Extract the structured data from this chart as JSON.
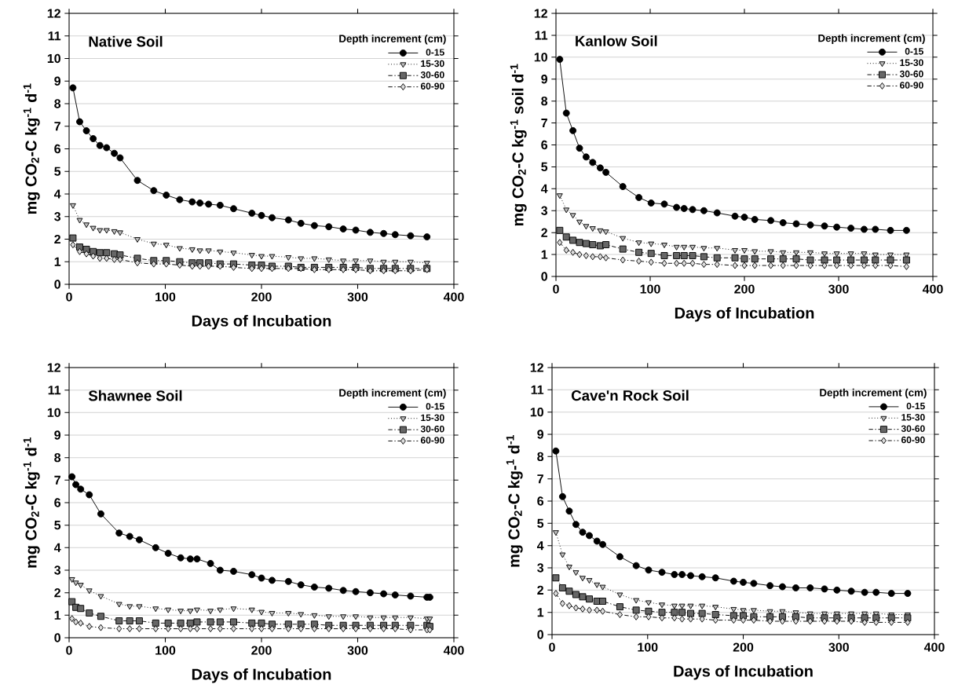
{
  "chart_data": [
    {
      "type": "line",
      "title": "Native Soil",
      "xlabel": "Days of Incubation",
      "ylabel": "mg CO$_{2}$-C kg$^{-1}$ d$^{-1}$",
      "legend_title": "Depth increment (cm)",
      "grid": "y",
      "legend": "top right",
      "xlim": [
        0,
        400
      ],
      "ylim": [
        0,
        12
      ],
      "xticks": [
        0,
        100,
        200,
        300,
        400
      ],
      "yticks": [
        0,
        1,
        2,
        3,
        4,
        5,
        6,
        7,
        8,
        9,
        10,
        11,
        12
      ],
      "x": [
        4,
        11,
        18,
        25,
        32,
        39,
        47,
        53,
        71,
        88,
        101,
        115,
        128,
        136,
        145,
        157,
        171,
        190,
        200,
        211,
        228,
        241,
        255,
        270,
        285,
        298,
        313,
        327,
        339,
        355,
        372
      ],
      "series": [
        {
          "name": "0-15",
          "color": "#000000",
          "marker": "circle",
          "line_style": "solid",
          "values": [
            8.7,
            7.2,
            6.8,
            6.45,
            6.15,
            6.05,
            5.8,
            5.6,
            4.6,
            4.15,
            3.95,
            3.75,
            3.65,
            3.6,
            3.55,
            3.5,
            3.35,
            3.15,
            3.05,
            2.95,
            2.85,
            2.7,
            2.6,
            2.55,
            2.45,
            2.4,
            2.3,
            2.25,
            2.2,
            2.15,
            2.1
          ]
        },
        {
          "name": "15-30",
          "color": "#c0c0c0",
          "marker": "triangle",
          "line_style": "dotted",
          "values": [
            3.5,
            2.85,
            2.65,
            2.5,
            2.4,
            2.4,
            2.35,
            2.3,
            2.0,
            1.8,
            1.75,
            1.6,
            1.55,
            1.5,
            1.5,
            1.45,
            1.4,
            1.3,
            1.25,
            1.25,
            1.2,
            1.15,
            1.15,
            1.1,
            1.05,
            1.05,
            1.05,
            1.0,
            1.0,
            1.0,
            0.95
          ]
        },
        {
          "name": "30-60",
          "color": "#666666",
          "marker": "square",
          "line_style": "dashed",
          "values": [
            2.05,
            1.65,
            1.55,
            1.45,
            1.4,
            1.4,
            1.35,
            1.3,
            1.15,
            1.05,
            1.05,
            1.0,
            0.95,
            0.95,
            0.95,
            0.9,
            0.9,
            0.85,
            0.85,
            0.8,
            0.8,
            0.75,
            0.75,
            0.75,
            0.75,
            0.75,
            0.7,
            0.7,
            0.7,
            0.7,
            0.7
          ]
        },
        {
          "name": "60-90",
          "color": "#dddddd",
          "marker": "diamond",
          "line_style": "dashed",
          "values": [
            1.75,
            1.45,
            1.35,
            1.25,
            1.15,
            1.15,
            1.1,
            1.1,
            0.95,
            0.9,
            0.9,
            0.85,
            0.8,
            0.8,
            0.8,
            0.8,
            0.75,
            0.7,
            0.7,
            0.7,
            0.7,
            0.7,
            0.65,
            0.65,
            0.65,
            0.65,
            0.6,
            0.6,
            0.6,
            0.6,
            0.65
          ]
        }
      ]
    },
    {
      "type": "line",
      "title": "Kanlow Soil",
      "xlabel": "Days of Incubation",
      "ylabel": "mg CO$_{2}$-C kg$^{-1}$ soil d$^{-1}$",
      "legend_title": "Depth increment (cm)",
      "grid": "y",
      "legend": "top right",
      "xlim": [
        0,
        400
      ],
      "ylim": [
        0,
        12
      ],
      "xticks": [
        0,
        100,
        200,
        300,
        400
      ],
      "yticks": [
        0,
        1,
        2,
        3,
        4,
        5,
        6,
        7,
        8,
        9,
        10,
        11,
        12
      ],
      "x": [
        4,
        11,
        18,
        25,
        32,
        39,
        47,
        53,
        71,
        88,
        101,
        115,
        128,
        136,
        145,
        157,
        171,
        190,
        200,
        211,
        228,
        241,
        255,
        270,
        285,
        298,
        313,
        327,
        339,
        355,
        372
      ],
      "series": [
        {
          "name": "0-15",
          "color": "#000000",
          "marker": "circle",
          "line_style": "solid",
          "values": [
            9.9,
            7.45,
            6.65,
            5.85,
            5.45,
            5.2,
            4.95,
            4.75,
            4.1,
            3.6,
            3.35,
            3.3,
            3.15,
            3.1,
            3.05,
            3.0,
            2.9,
            2.75,
            2.7,
            2.6,
            2.55,
            2.45,
            2.4,
            2.35,
            2.3,
            2.25,
            2.2,
            2.15,
            2.15,
            2.1,
            2.1
          ]
        },
        {
          "name": "15-30",
          "color": "#c0c0c0",
          "marker": "triangle",
          "line_style": "dotted",
          "values": [
            3.7,
            3.05,
            2.8,
            2.5,
            2.3,
            2.2,
            2.1,
            2.05,
            1.75,
            1.55,
            1.5,
            1.45,
            1.35,
            1.35,
            1.35,
            1.3,
            1.3,
            1.2,
            1.2,
            1.15,
            1.15,
            1.1,
            1.1,
            1.1,
            1.05,
            1.05,
            1.05,
            1.05,
            1.0,
            1.0,
            1.0
          ]
        },
        {
          "name": "30-60",
          "color": "#666666",
          "marker": "square",
          "line_style": "dashed",
          "values": [
            2.1,
            1.8,
            1.65,
            1.55,
            1.5,
            1.45,
            1.4,
            1.45,
            1.25,
            1.1,
            1.05,
            0.95,
            0.95,
            0.95,
            0.95,
            0.9,
            0.85,
            0.85,
            0.8,
            0.8,
            0.8,
            0.8,
            0.8,
            0.75,
            0.75,
            0.75,
            0.75,
            0.75,
            0.75,
            0.75,
            0.75
          ]
        },
        {
          "name": "60-90",
          "color": "#dddddd",
          "marker": "diamond",
          "line_style": "dashed",
          "values": [
            1.55,
            1.2,
            1.1,
            1.0,
            0.95,
            0.9,
            0.9,
            0.85,
            0.75,
            0.7,
            0.65,
            0.6,
            0.6,
            0.6,
            0.6,
            0.55,
            0.55,
            0.5,
            0.5,
            0.5,
            0.5,
            0.5,
            0.5,
            0.5,
            0.5,
            0.5,
            0.5,
            0.5,
            0.5,
            0.5,
            0.45
          ]
        }
      ]
    },
    {
      "type": "line",
      "title": "Shawnee Soil",
      "xlabel": "Days of Incubation",
      "ylabel": "mg CO$_{2}$-C kg$^{-1}$ d$^{-1}$",
      "legend_title": "Depth increment (cm)",
      "grid": "y",
      "legend": "top right",
      "xlim": [
        0,
        400
      ],
      "ylim": [
        0,
        12
      ],
      "xticks": [
        0,
        100,
        200,
        300,
        400
      ],
      "yticks": [
        0,
        1,
        2,
        3,
        4,
        5,
        6,
        7,
        8,
        9,
        10,
        11,
        12
      ],
      "x": [
        3,
        7,
        12,
        21,
        33,
        52,
        63,
        73,
        90,
        103,
        116,
        126,
        133,
        147,
        157,
        171,
        190,
        200,
        211,
        228,
        241,
        255,
        270,
        285,
        298,
        313,
        327,
        339,
        355,
        372,
        375
      ],
      "series": [
        {
          "name": "0-15",
          "color": "#000000",
          "marker": "circle",
          "line_style": "solid",
          "values": [
            7.15,
            6.8,
            6.6,
            6.35,
            5.5,
            4.65,
            4.5,
            4.35,
            4.0,
            3.75,
            3.55,
            3.5,
            3.5,
            3.3,
            3.0,
            2.95,
            2.8,
            2.65,
            2.55,
            2.5,
            2.35,
            2.25,
            2.2,
            2.1,
            2.05,
            2.0,
            1.95,
            1.9,
            1.85,
            1.8,
            1.8
          ]
        },
        {
          "name": "15-30",
          "color": "#c0c0c0",
          "marker": "triangle",
          "line_style": "dotted",
          "values": [
            2.6,
            2.45,
            2.35,
            2.1,
            1.85,
            1.5,
            1.4,
            1.4,
            1.3,
            1.25,
            1.2,
            1.2,
            1.25,
            1.2,
            1.25,
            1.3,
            1.25,
            1.15,
            1.1,
            1.1,
            1.05,
            1.0,
            0.95,
            0.95,
            0.95,
            0.9,
            0.9,
            0.9,
            0.9,
            0.85,
            0.85
          ]
        },
        {
          "name": "30-60",
          "color": "#666666",
          "marker": "square",
          "line_style": "dashed",
          "values": [
            1.6,
            1.35,
            1.3,
            1.1,
            0.95,
            0.75,
            0.75,
            0.75,
            0.65,
            0.65,
            0.65,
            0.65,
            0.7,
            0.7,
            0.7,
            0.7,
            0.65,
            0.65,
            0.6,
            0.6,
            0.6,
            0.6,
            0.55,
            0.55,
            0.55,
            0.55,
            0.55,
            0.55,
            0.55,
            0.55,
            0.5
          ]
        },
        {
          "name": "60-90",
          "color": "#dddddd",
          "marker": "diamond",
          "line_style": "dashed",
          "values": [
            0.85,
            0.7,
            0.65,
            0.5,
            0.45,
            0.4,
            0.4,
            0.4,
            0.4,
            0.4,
            0.4,
            0.4,
            0.4,
            0.4,
            0.4,
            0.4,
            0.4,
            0.4,
            0.4,
            0.4,
            0.4,
            0.4,
            0.4,
            0.4,
            0.4,
            0.4,
            0.4,
            0.4,
            0.35,
            0.35,
            0.35
          ]
        }
      ]
    },
    {
      "type": "line",
      "title": "Cave'n Rock Soil",
      "xlabel": "Days of Incubation",
      "ylabel": "mg CO$_{2}$-C kg-$^{1}$ d$^{-1}$",
      "legend_title": "Depth increment (cm)",
      "grid": "y",
      "legend": "top right",
      "xlim": [
        0,
        400
      ],
      "ylim": [
        0,
        12
      ],
      "xticks": [
        0,
        100,
        200,
        300,
        400
      ],
      "yticks": [
        0,
        1,
        2,
        3,
        4,
        5,
        6,
        7,
        8,
        9,
        10,
        11,
        12
      ],
      "x": [
        4,
        11,
        18,
        25,
        32,
        39,
        47,
        53,
        71,
        88,
        101,
        115,
        128,
        136,
        145,
        157,
        171,
        190,
        200,
        211,
        228,
        241,
        255,
        270,
        285,
        298,
        313,
        327,
        339,
        355,
        372
      ],
      "series": [
        {
          "name": "0-15",
          "color": "#000000",
          "marker": "circle",
          "line_style": "solid",
          "values": [
            8.25,
            6.2,
            5.55,
            4.95,
            4.6,
            4.45,
            4.2,
            4.05,
            3.5,
            3.1,
            2.9,
            2.8,
            2.7,
            2.7,
            2.65,
            2.6,
            2.55,
            2.4,
            2.35,
            2.3,
            2.2,
            2.15,
            2.1,
            2.1,
            2.05,
            2.0,
            1.95,
            1.9,
            1.9,
            1.85,
            1.85
          ]
        },
        {
          "name": "15-30",
          "color": "#c0c0c0",
          "marker": "triangle",
          "line_style": "dotted",
          "values": [
            4.6,
            3.6,
            3.05,
            2.8,
            2.55,
            2.45,
            2.25,
            2.15,
            1.8,
            1.55,
            1.45,
            1.35,
            1.3,
            1.3,
            1.3,
            1.3,
            1.25,
            1.15,
            1.1,
            1.1,
            1.05,
            1.05,
            1.0,
            0.95,
            0.95,
            0.95,
            0.95,
            0.95,
            0.95,
            0.9,
            0.9
          ]
        },
        {
          "name": "30-60",
          "color": "#666666",
          "marker": "square",
          "line_style": "dashed",
          "values": [
            2.55,
            2.1,
            1.95,
            1.8,
            1.7,
            1.6,
            1.5,
            1.5,
            1.25,
            1.1,
            1.05,
            1.0,
            1.0,
            1.0,
            0.95,
            0.95,
            0.9,
            0.85,
            0.85,
            0.8,
            0.8,
            0.8,
            0.8,
            0.75,
            0.75,
            0.75,
            0.75,
            0.75,
            0.75,
            0.75,
            0.75
          ]
        },
        {
          "name": "60-90",
          "color": "#dddddd",
          "marker": "diamond",
          "line_style": "dashed",
          "values": [
            1.85,
            1.4,
            1.3,
            1.2,
            1.15,
            1.1,
            1.1,
            1.05,
            0.9,
            0.8,
            0.8,
            0.75,
            0.75,
            0.7,
            0.7,
            0.7,
            0.65,
            0.65,
            0.65,
            0.65,
            0.6,
            0.6,
            0.6,
            0.6,
            0.6,
            0.6,
            0.6,
            0.55,
            0.55,
            0.55,
            0.55
          ]
        }
      ]
    }
  ]
}
